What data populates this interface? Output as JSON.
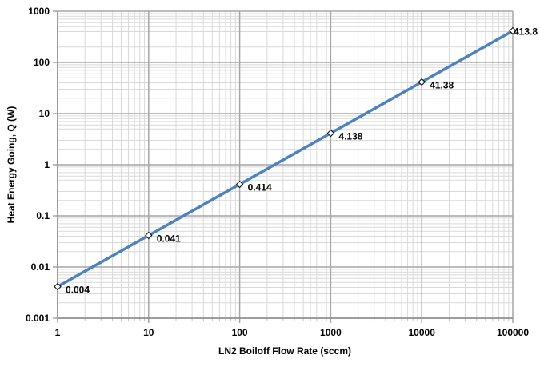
{
  "chart_data": {
    "type": "line",
    "title": "",
    "xlabel": "LN2 Boiloff Flow Rate (sccm)",
    "ylabel": "Heat Energy Going, Q (W)",
    "xscale": "log",
    "yscale": "log",
    "xlim": [
      1,
      100000
    ],
    "ylim": [
      0.001,
      1000
    ],
    "grid": true,
    "legend": "none",
    "x_ticks": [
      "1",
      "10",
      "100",
      "1000",
      "10000",
      "100000"
    ],
    "y_ticks": [
      "0.001",
      "0.01",
      "0.1",
      "1",
      "10",
      "100",
      "1000"
    ],
    "series": [
      {
        "name": "Heat Energy",
        "color": "#4F81BD",
        "x": [
          1,
          10,
          100,
          1000,
          10000,
          100000
        ],
        "values": [
          0.004138,
          0.04138,
          0.4138,
          4.138,
          41.38,
          413.8
        ],
        "data_labels": [
          "0.004",
          "0.041",
          "0.414",
          "4.138",
          "41.38",
          "413.8"
        ]
      }
    ]
  }
}
